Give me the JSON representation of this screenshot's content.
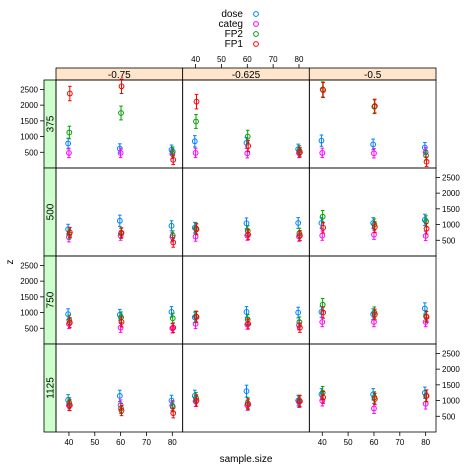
{
  "chart_data": {
    "type": "scatter",
    "xlabel": "sample.size",
    "ylabel": "z",
    "x_ticks": [
      40,
      50,
      60,
      70,
      80
    ],
    "y_ticks": [
      500,
      1000,
      1500,
      2000,
      2500
    ],
    "xlim": [
      35,
      84
    ],
    "ylim": [
      0,
      2800
    ],
    "columns": [
      "-0.75",
      "-0.625",
      "-0.5"
    ],
    "rows": [
      "375",
      "500",
      "750",
      "1125"
    ],
    "strip_colors": {
      "top": "#ffe5cc",
      "left": "#ccffcc"
    },
    "series": [
      {
        "name": "dose",
        "color": "#0080ff"
      },
      {
        "name": "categ",
        "color": "#ff00ff"
      },
      {
        "name": "FP2",
        "color": "#00a000"
      },
      {
        "name": "FP1",
        "color": "#ff0000"
      }
    ],
    "panels": [
      {
        "row": "375",
        "col": "-0.75",
        "points": [
          [
            40,
            780,
            170,
            0
          ],
          [
            60,
            620,
            150,
            0
          ],
          [
            80,
            580,
            150,
            0
          ],
          [
            40,
            480,
            150,
            1
          ],
          [
            60,
            480,
            150,
            1
          ],
          [
            80,
            450,
            150,
            1
          ],
          [
            40,
            1130,
            200,
            2
          ],
          [
            60,
            1750,
            220,
            2
          ],
          [
            80,
            520,
            150,
            2
          ],
          [
            40,
            2370,
            230,
            3
          ],
          [
            60,
            2600,
            230,
            3
          ],
          [
            80,
            260,
            150,
            3
          ]
        ]
      },
      {
        "row": "375",
        "col": "-0.625",
        "points": [
          [
            40,
            850,
            180,
            0
          ],
          [
            60,
            800,
            170,
            0
          ],
          [
            80,
            600,
            160,
            0
          ],
          [
            40,
            480,
            150,
            1
          ],
          [
            60,
            470,
            150,
            1
          ],
          [
            80,
            480,
            150,
            1
          ],
          [
            40,
            1480,
            220,
            2
          ],
          [
            60,
            1000,
            200,
            2
          ],
          [
            80,
            550,
            160,
            2
          ],
          [
            40,
            2110,
            230,
            3
          ],
          [
            60,
            700,
            180,
            3
          ],
          [
            80,
            500,
            150,
            3
          ]
        ]
      },
      {
        "row": "375",
        "col": "-0.5",
        "points": [
          [
            40,
            870,
            180,
            0
          ],
          [
            60,
            750,
            170,
            0
          ],
          [
            80,
            650,
            160,
            0
          ],
          [
            40,
            480,
            150,
            1
          ],
          [
            60,
            470,
            150,
            1
          ],
          [
            80,
            500,
            150,
            1
          ],
          [
            40,
            2500,
            240,
            2
          ],
          [
            60,
            1950,
            220,
            2
          ],
          [
            80,
            400,
            150,
            2
          ],
          [
            40,
            2480,
            240,
            3
          ],
          [
            60,
            1970,
            220,
            3
          ],
          [
            80,
            200,
            150,
            3
          ]
        ]
      },
      {
        "row": "500",
        "col": "-0.75",
        "points": [
          [
            40,
            850,
            160,
            0
          ],
          [
            60,
            1120,
            180,
            0
          ],
          [
            80,
            960,
            160,
            0
          ],
          [
            40,
            600,
            150,
            1
          ],
          [
            60,
            650,
            150,
            1
          ],
          [
            80,
            600,
            150,
            1
          ],
          [
            40,
            700,
            160,
            2
          ],
          [
            60,
            720,
            160,
            2
          ],
          [
            80,
            650,
            150,
            2
          ],
          [
            40,
            750,
            160,
            3
          ],
          [
            60,
            740,
            160,
            3
          ],
          [
            80,
            430,
            150,
            3
          ]
        ]
      },
      {
        "row": "500",
        "col": "-0.625",
        "points": [
          [
            40,
            900,
            170,
            0
          ],
          [
            60,
            1040,
            170,
            0
          ],
          [
            80,
            1050,
            170,
            0
          ],
          [
            40,
            620,
            150,
            1
          ],
          [
            60,
            650,
            150,
            1
          ],
          [
            80,
            620,
            150,
            1
          ],
          [
            40,
            880,
            170,
            2
          ],
          [
            60,
            800,
            160,
            2
          ],
          [
            80,
            720,
            160,
            2
          ],
          [
            40,
            850,
            170,
            3
          ],
          [
            60,
            680,
            160,
            3
          ],
          [
            80,
            650,
            160,
            3
          ]
        ]
      },
      {
        "row": "500",
        "col": "-0.5",
        "points": [
          [
            40,
            1050,
            170,
            0
          ],
          [
            60,
            1050,
            170,
            0
          ],
          [
            80,
            1150,
            180,
            0
          ],
          [
            40,
            650,
            150,
            1
          ],
          [
            60,
            680,
            150,
            1
          ],
          [
            80,
            640,
            150,
            1
          ],
          [
            40,
            1250,
            200,
            2
          ],
          [
            60,
            1000,
            180,
            2
          ],
          [
            80,
            1100,
            180,
            2
          ],
          [
            40,
            900,
            170,
            3
          ],
          [
            60,
            920,
            170,
            3
          ],
          [
            80,
            870,
            170,
            3
          ]
        ]
      },
      {
        "row": "750",
        "col": "-0.75",
        "points": [
          [
            40,
            950,
            170,
            0
          ],
          [
            60,
            930,
            170,
            0
          ],
          [
            80,
            1020,
            170,
            0
          ],
          [
            40,
            640,
            150,
            1
          ],
          [
            60,
            520,
            150,
            1
          ],
          [
            80,
            500,
            150,
            1
          ],
          [
            40,
            760,
            160,
            2
          ],
          [
            60,
            850,
            170,
            2
          ],
          [
            80,
            820,
            160,
            2
          ],
          [
            40,
            680,
            160,
            3
          ],
          [
            60,
            700,
            160,
            3
          ],
          [
            80,
            520,
            150,
            3
          ]
        ]
      },
      {
        "row": "750",
        "col": "-0.625",
        "points": [
          [
            40,
            850,
            170,
            0
          ],
          [
            60,
            1020,
            170,
            0
          ],
          [
            80,
            1000,
            170,
            0
          ],
          [
            40,
            640,
            150,
            1
          ],
          [
            60,
            620,
            150,
            1
          ],
          [
            80,
            600,
            150,
            1
          ],
          [
            40,
            880,
            170,
            2
          ],
          [
            60,
            780,
            160,
            2
          ],
          [
            80,
            700,
            160,
            2
          ],
          [
            40,
            860,
            170,
            3
          ],
          [
            60,
            640,
            160,
            3
          ],
          [
            80,
            520,
            150,
            3
          ]
        ]
      },
      {
        "row": "750",
        "col": "-0.5",
        "points": [
          [
            40,
            1020,
            170,
            0
          ],
          [
            60,
            950,
            170,
            0
          ],
          [
            80,
            1130,
            180,
            0
          ],
          [
            40,
            700,
            150,
            1
          ],
          [
            60,
            700,
            150,
            1
          ],
          [
            80,
            700,
            150,
            1
          ],
          [
            40,
            1250,
            200,
            2
          ],
          [
            60,
            1000,
            180,
            2
          ],
          [
            80,
            880,
            170,
            2
          ],
          [
            40,
            1000,
            180,
            3
          ],
          [
            60,
            940,
            170,
            3
          ],
          [
            80,
            860,
            170,
            3
          ]
        ]
      },
      {
        "row": "1125",
        "col": "-0.75",
        "points": [
          [
            40,
            1020,
            170,
            0
          ],
          [
            60,
            1150,
            180,
            0
          ],
          [
            80,
            1000,
            170,
            0
          ],
          [
            40,
            850,
            160,
            1
          ],
          [
            60,
            860,
            160,
            1
          ],
          [
            80,
            840,
            160,
            1
          ],
          [
            40,
            920,
            170,
            2
          ],
          [
            60,
            750,
            160,
            2
          ],
          [
            80,
            800,
            160,
            2
          ],
          [
            40,
            850,
            170,
            3
          ],
          [
            60,
            680,
            160,
            3
          ],
          [
            80,
            600,
            150,
            3
          ]
        ]
      },
      {
        "row": "1125",
        "col": "-0.625",
        "points": [
          [
            40,
            1150,
            180,
            0
          ],
          [
            60,
            1300,
            190,
            0
          ],
          [
            80,
            1000,
            170,
            0
          ],
          [
            40,
            980,
            170,
            1
          ],
          [
            60,
            850,
            160,
            1
          ],
          [
            80,
            950,
            170,
            1
          ],
          [
            40,
            1080,
            180,
            2
          ],
          [
            60,
            920,
            170,
            2
          ],
          [
            80,
            1000,
            170,
            2
          ],
          [
            40,
            1000,
            180,
            3
          ],
          [
            60,
            880,
            170,
            3
          ],
          [
            80,
            980,
            180,
            3
          ]
        ]
      },
      {
        "row": "1125",
        "col": "-0.5",
        "points": [
          [
            40,
            1200,
            180,
            0
          ],
          [
            60,
            1200,
            180,
            0
          ],
          [
            80,
            1250,
            180,
            0
          ],
          [
            40,
            1000,
            170,
            1
          ],
          [
            60,
            750,
            160,
            1
          ],
          [
            80,
            900,
            170,
            1
          ],
          [
            40,
            1250,
            200,
            2
          ],
          [
            60,
            1100,
            180,
            2
          ],
          [
            80,
            1150,
            180,
            2
          ],
          [
            40,
            1100,
            190,
            3
          ],
          [
            60,
            1050,
            180,
            3
          ],
          [
            80,
            1150,
            190,
            3
          ]
        ]
      }
    ]
  }
}
